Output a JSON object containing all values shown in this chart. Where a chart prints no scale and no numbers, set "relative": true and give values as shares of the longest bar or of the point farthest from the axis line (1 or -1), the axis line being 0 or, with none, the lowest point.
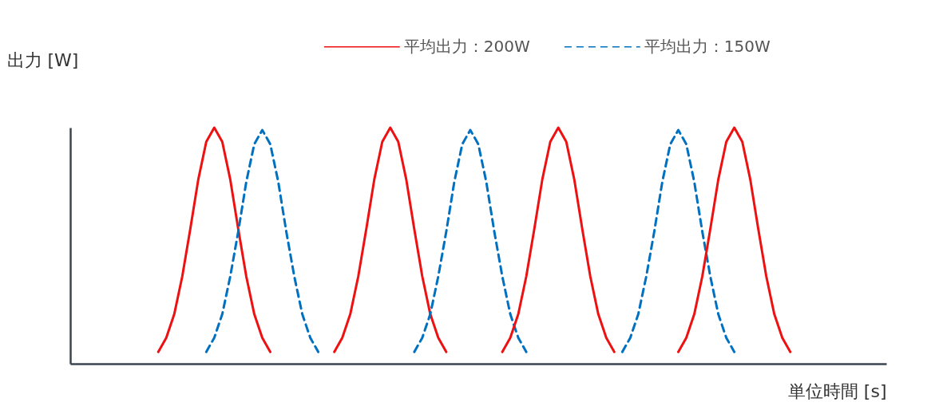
{
  "chart_data": {
    "type": "line",
    "relative": true,
    "xlabel": "単位時間 [s]",
    "ylabel": "出力 [W]",
    "legend": "top right",
    "grid": false,
    "categories": [
      null,
      null,
      null,
      null,
      null,
      null,
      null,
      null,
      null,
      null,
      null,
      null,
      null,
      null,
      null,
      null,
      null,
      null,
      null,
      null,
      null,
      null,
      null,
      null,
      null,
      null,
      null,
      null,
      null,
      null,
      null,
      null,
      null,
      null,
      null,
      null,
      null,
      null,
      null,
      null,
      null,
      null,
      null,
      null,
      null,
      null,
      null,
      null,
      null,
      null,
      null,
      null,
      null,
      null,
      null,
      null,
      null,
      null,
      null,
      null,
      null,
      null,
      null,
      null,
      null,
      null,
      null,
      null,
      null,
      null,
      null,
      null,
      null,
      null,
      null,
      null,
      null,
      null,
      null,
      null,
      null,
      null,
      null,
      null,
      null,
      null,
      null,
      null,
      null,
      null,
      null,
      null,
      null,
      null,
      null,
      null,
      null,
      null,
      null,
      null,
      null,
      null,
      null
    ],
    "series": [
      {
        "name": "平均出力：200W",
        "color": "#ee1111",
        "line_style": "solid",
        "values": [
          null,
          null,
          null,
          null,
          null,
          null,
          null,
          null,
          null,
          null,
          null,
          0.05,
          0.11,
          0.21,
          0.37,
          0.57,
          0.78,
          0.94,
          1,
          0.94,
          0.78,
          0.57,
          0.37,
          0.21,
          0.11,
          0.05,
          null,
          null,
          null,
          null,
          null,
          null,
          null,
          null,
          null,
          null,
          null,
          null,
          null,
          null,
          null,
          null,
          null,
          null,
          null,
          null,
          null,
          null,
          null,
          null,
          null,
          null,
          null,
          null,
          null,
          null,
          null,
          null,
          null,
          null,
          null,
          null,
          null,
          null,
          null,
          null,
          null,
          null,
          null,
          null,
          null,
          null,
          null,
          null,
          null,
          null,
          null,
          null,
          null,
          null,
          null,
          null,
          null,
          null,
          null,
          null,
          null,
          null,
          null,
          null,
          null,
          null,
          null,
          null,
          null,
          null,
          null,
          null,
          null,
          null,
          null,
          null,
          null
        ]
      },
      {
        "name": "平均出力：150W",
        "color": "#0070c0",
        "line_style": "dashed",
        "values": [
          null,
          null,
          null,
          null,
          null,
          null,
          null,
          null,
          null,
          null,
          null,
          null,
          null,
          null,
          null,
          null,
          null,
          0.05,
          0.11,
          0.21,
          0.37,
          0.56,
          0.77,
          0.93,
          0.99,
          0.93,
          0.77,
          0.56,
          0.37,
          0.21,
          0.11,
          0.05,
          null,
          null,
          null,
          null,
          null,
          null,
          null,
          null,
          null,
          null,
          null,
          null,
          null,
          null,
          null,
          null,
          null,
          null,
          null,
          null,
          null,
          null,
          null,
          null,
          null,
          null,
          null,
          null,
          null,
          null,
          null,
          null,
          null,
          null,
          null,
          null,
          null,
          null,
          null,
          null,
          null,
          null,
          null,
          null,
          null,
          null,
          null,
          null,
          null,
          null,
          null,
          null,
          null,
          null,
          null,
          null,
          null,
          null,
          null,
          null,
          null,
          null,
          null,
          null,
          null,
          null,
          null,
          null,
          null,
          null,
          null
        ]
      },
      {
        "color": "#ee1111",
        "line_style": "solid",
        "values": [
          null,
          null,
          null,
          null,
          null,
          null,
          null,
          null,
          null,
          null,
          null,
          null,
          null,
          null,
          null,
          null,
          null,
          null,
          null,
          null,
          null,
          null,
          null,
          null,
          null,
          null,
          null,
          null,
          null,
          null,
          null,
          null,
          null,
          0.05,
          0.11,
          0.21,
          0.37,
          0.57,
          0.78,
          0.94,
          1,
          0.94,
          0.78,
          0.57,
          0.37,
          0.21,
          0.11,
          0.05,
          null,
          null,
          null,
          null,
          null,
          null,
          null,
          null,
          null,
          null,
          null,
          null,
          null,
          null,
          null,
          null,
          null,
          null,
          null,
          null,
          null,
          null,
          null,
          null,
          null,
          null,
          null,
          null,
          null,
          null,
          null,
          null,
          null,
          null,
          null,
          null,
          null,
          null,
          null,
          null,
          null,
          null,
          null,
          null,
          null,
          null,
          null,
          null,
          null,
          null,
          null,
          null,
          null,
          null,
          null
        ]
      },
      {
        "color": "#0070c0",
        "line_style": "dashed",
        "values": [
          null,
          null,
          null,
          null,
          null,
          null,
          null,
          null,
          null,
          null,
          null,
          null,
          null,
          null,
          null,
          null,
          null,
          null,
          null,
          null,
          null,
          null,
          null,
          null,
          null,
          null,
          null,
          null,
          null,
          null,
          null,
          null,
          null,
          null,
          null,
          null,
          null,
          null,
          null,
          null,
          null,
          null,
          null,
          0.05,
          0.11,
          0.21,
          0.37,
          0.56,
          0.77,
          0.93,
          0.99,
          0.93,
          0.77,
          0.56,
          0.37,
          0.21,
          0.11,
          0.05,
          null,
          null,
          null,
          null,
          null,
          null,
          null,
          null,
          null,
          null,
          null,
          null,
          null,
          null,
          null,
          null,
          null,
          null,
          null,
          null,
          null,
          null,
          null,
          null,
          null,
          null,
          null,
          null,
          null,
          null,
          null,
          null,
          null,
          null,
          null,
          null,
          null,
          null,
          null,
          null,
          null,
          null,
          null,
          null,
          null
        ]
      },
      {
        "color": "#ee1111",
        "line_style": "solid",
        "values": [
          null,
          null,
          null,
          null,
          null,
          null,
          null,
          null,
          null,
          null,
          null,
          null,
          null,
          null,
          null,
          null,
          null,
          null,
          null,
          null,
          null,
          null,
          null,
          null,
          null,
          null,
          null,
          null,
          null,
          null,
          null,
          null,
          null,
          null,
          null,
          null,
          null,
          null,
          null,
          null,
          null,
          null,
          null,
          null,
          null,
          null,
          null,
          null,
          null,
          null,
          null,
          null,
          null,
          null,
          0.05,
          0.11,
          0.21,
          0.37,
          0.57,
          0.78,
          0.94,
          1,
          0.94,
          0.78,
          0.57,
          0.37,
          0.21,
          0.11,
          0.05,
          null,
          null,
          null,
          null,
          null,
          null,
          null,
          null,
          null,
          null,
          null,
          null,
          null,
          null,
          null,
          null,
          null,
          null,
          null,
          null,
          null,
          null,
          null,
          null,
          null,
          null,
          null,
          null,
          null,
          null,
          null,
          null,
          null,
          null
        ]
      },
      {
        "color": "#0070c0",
        "line_style": "dashed",
        "values": [
          null,
          null,
          null,
          null,
          null,
          null,
          null,
          null,
          null,
          null,
          null,
          null,
          null,
          null,
          null,
          null,
          null,
          null,
          null,
          null,
          null,
          null,
          null,
          null,
          null,
          null,
          null,
          null,
          null,
          null,
          null,
          null,
          null,
          null,
          null,
          null,
          null,
          null,
          null,
          null,
          null,
          null,
          null,
          null,
          null,
          null,
          null,
          null,
          null,
          null,
          null,
          null,
          null,
          null,
          null,
          null,
          null,
          null,
          null,
          null,
          null,
          null,
          null,
          null,
          null,
          null,
          null,
          null,
          null,
          0.05,
          0.11,
          0.21,
          0.37,
          0.56,
          0.77,
          0.93,
          0.99,
          0.93,
          0.77,
          0.56,
          0.37,
          0.21,
          0.11,
          0.05,
          null,
          null,
          null,
          null,
          null,
          null,
          null,
          null,
          null,
          null,
          null,
          null,
          null,
          null,
          null,
          null,
          null,
          null,
          null
        ]
      },
      {
        "color": "#ee1111",
        "line_style": "solid",
        "values": [
          null,
          null,
          null,
          null,
          null,
          null,
          null,
          null,
          null,
          null,
          null,
          null,
          null,
          null,
          null,
          null,
          null,
          null,
          null,
          null,
          null,
          null,
          null,
          null,
          null,
          null,
          null,
          null,
          null,
          null,
          null,
          null,
          null,
          null,
          null,
          null,
          null,
          null,
          null,
          null,
          null,
          null,
          null,
          null,
          null,
          null,
          null,
          null,
          null,
          null,
          null,
          null,
          null,
          null,
          null,
          null,
          null,
          null,
          null,
          null,
          null,
          null,
          null,
          null,
          null,
          null,
          null,
          null,
          null,
          null,
          null,
          null,
          null,
          null,
          null,
          null,
          0.05,
          0.11,
          0.21,
          0.37,
          0.57,
          0.78,
          0.94,
          1,
          0.94,
          0.78,
          0.57,
          0.37,
          0.21,
          0.11,
          0.05,
          null,
          null,
          null,
          null,
          null,
          null,
          null,
          null,
          null,
          null,
          null,
          null
        ]
      }
    ]
  }
}
